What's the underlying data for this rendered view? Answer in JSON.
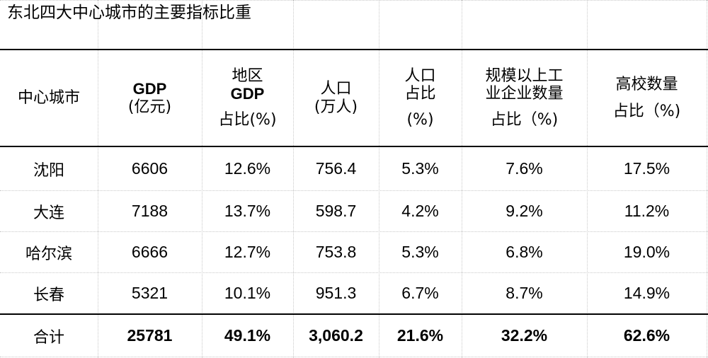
{
  "table": {
    "title": "东北四大中心城市的主要指标比重",
    "headers": [
      [
        "中心城市"
      ],
      [
        "GDP",
        "(亿元)"
      ],
      [
        "地区",
        "GDP",
        "占比(%)"
      ],
      [
        "人口",
        "(万人)"
      ],
      [
        "人口",
        "占比",
        "(%)"
      ],
      [
        "规模以上工",
        "业企业数量",
        "占比（%)"
      ],
      [
        "高校数量",
        "占比（%)"
      ]
    ],
    "rows": [
      [
        "沈阳",
        "6606",
        "12.6%",
        "756.4",
        "5.3%",
        "7.6%",
        "17.5%"
      ],
      [
        "大连",
        "7188",
        "13.7%",
        "598.7",
        "4.2%",
        "9.2%",
        "11.2%"
      ],
      [
        "哈尔滨",
        "6666",
        "12.7%",
        "753.8",
        "5.3%",
        "6.8%",
        "19.0%"
      ],
      [
        "长春",
        "5321",
        "10.1%",
        "951.3",
        "6.7%",
        "8.7%",
        "14.9%"
      ]
    ],
    "total": [
      "合计",
      "25781",
      "49.1%",
      "3,060.2",
      "21.6%",
      "32.2%",
      "62.6%"
    ]
  }
}
